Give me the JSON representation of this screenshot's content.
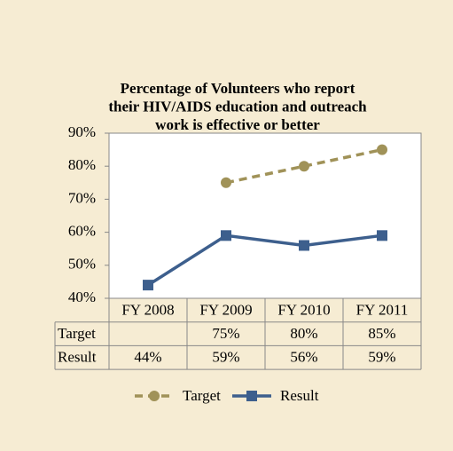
{
  "chart_data": {
    "type": "line",
    "title": [
      "Percentage of Volunteers who report",
      "their HIV/AIDS education and outreach",
      "work is effective or better"
    ],
    "categories": [
      "FY 2008",
      "FY 2009",
      "FY 2010",
      "FY 2011"
    ],
    "series": [
      {
        "name": "Target",
        "color": "#a09258",
        "dashed": true,
        "marker": "circle",
        "values": [
          null,
          75,
          80,
          85
        ],
        "value_labels": [
          null,
          "75%",
          "80%",
          "85%"
        ]
      },
      {
        "name": "Result",
        "color": "#3d5f8d",
        "dashed": false,
        "marker": "square",
        "values": [
          44,
          59,
          56,
          59
        ],
        "value_labels": [
          "44%",
          "59%",
          "56%",
          "59%"
        ]
      }
    ],
    "ylim": [
      40,
      90
    ],
    "yticks": [
      {
        "value": 40,
        "label": "40%"
      },
      {
        "value": 50,
        "label": "50%"
      },
      {
        "value": 60,
        "label": "60%"
      },
      {
        "value": 70,
        "label": "70%"
      },
      {
        "value": 80,
        "label": "80%"
      },
      {
        "value": 90,
        "label": "90%"
      }
    ],
    "legend": "bottom",
    "data_table": true
  }
}
